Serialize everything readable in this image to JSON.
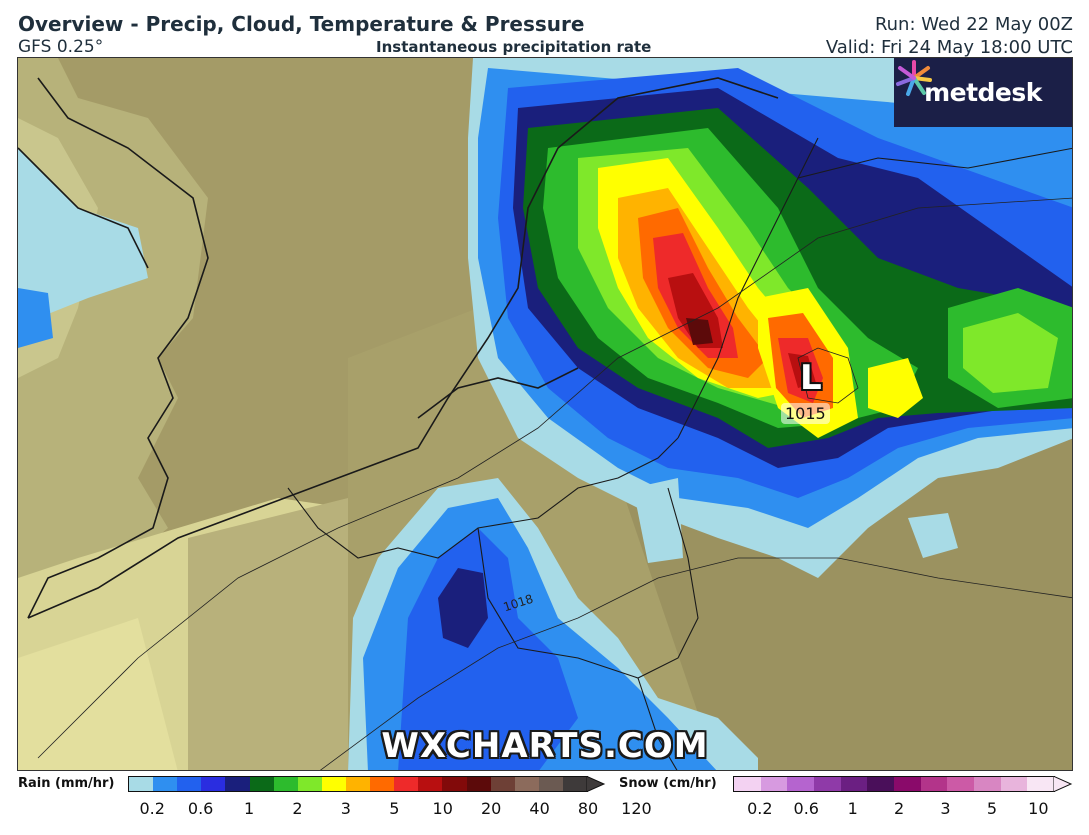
{
  "header": {
    "title": "Overview - Precip, Cloud, Temperature & Pressure",
    "model": "GFS 0.25°",
    "subtitle": "Instantaneous precipitation rate",
    "run": "Run: Wed 22 May 00Z",
    "valid": "Valid: Fri 24 May 18:00 UTC"
  },
  "brand": {
    "name": "metdesk",
    "icon": "metdesk-starburst-icon"
  },
  "watermark": "WXCHARTS.COM",
  "map": {
    "low_pressure": {
      "letter": "L",
      "value": "1015"
    },
    "isobar_label": "1018"
  },
  "legend": {
    "rain": {
      "label": "Rain (mm/hr)",
      "colors": [
        "#a8dbe6",
        "#2f8ff0",
        "#2261ee",
        "#2a2de0",
        "#1a1f7c",
        "#0b6a18",
        "#2dbb2d",
        "#7fe82a",
        "#ffff00",
        "#ffb300",
        "#ff6a00",
        "#ee2a2a",
        "#b80f10",
        "#820a0a",
        "#5c0a0a",
        "#6e4036",
        "#8c6b5c",
        "#6b5a52",
        "#3e3a3a"
      ],
      "ticks": [
        "0.2",
        "0.6",
        "1",
        "2",
        "3",
        "5",
        "10",
        "20",
        "40",
        "80",
        "120"
      ]
    },
    "snow": {
      "label": "Snow (cm/hr)",
      "colors": [
        "#f3d2f2",
        "#d79ae0",
        "#b564cf",
        "#8f3aa8",
        "#6b1f82",
        "#4a0f5a",
        "#8a0a6a",
        "#b3348a",
        "#cc5aa6",
        "#d886c2",
        "#e8b4dc",
        "#f8e6f4"
      ],
      "ticks": [
        "0.2",
        "0.6",
        "1",
        "2",
        "3",
        "5",
        "10"
      ]
    }
  }
}
